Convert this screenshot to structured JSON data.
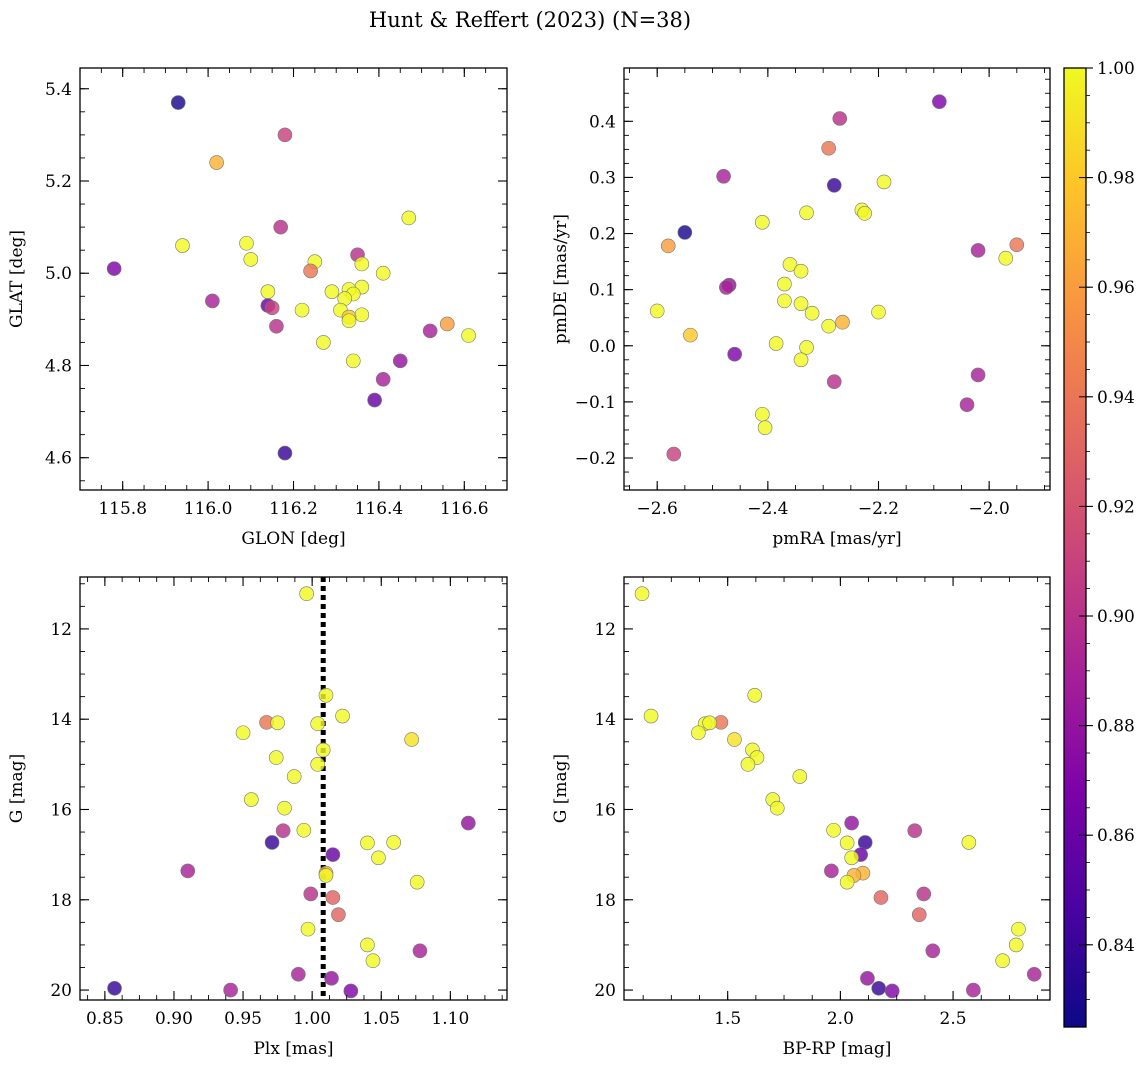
{
  "title": "Hunt & Reffert (2023) (N=38)",
  "colorbar": {
    "min": 0.825,
    "max": 1.0,
    "colormap": "plasma",
    "ticks": [
      0.84,
      0.86,
      0.88,
      0.9,
      0.92,
      0.94,
      0.96,
      0.98,
      1.0
    ],
    "tick_labels": [
      "0.84",
      "0.86",
      "0.88",
      "0.90",
      "0.92",
      "0.94",
      "0.96",
      "0.98",
      "1.00"
    ]
  },
  "chart_data": [
    {
      "type": "scatter",
      "id": "glon-glat",
      "xlabel": "GLON [deg]",
      "ylabel": "GLAT [deg]",
      "xlim": [
        115.7,
        116.7
      ],
      "ylim": [
        4.53,
        5.445
      ],
      "y_inverted": false,
      "xticks": [
        115.8,
        116.0,
        116.2,
        116.4,
        116.6
      ],
      "xtick_labels": [
        "115.8",
        "116.0",
        "116.2",
        "116.4",
        "116.6"
      ],
      "yticks": [
        4.6,
        4.8,
        5.0,
        5.2,
        5.4
      ],
      "ytick_labels": [
        "4.6",
        "4.8",
        "5.0",
        "5.2",
        "5.4"
      ],
      "points": [
        {
          "x": 115.93,
          "y": 5.37,
          "c": 0.83
        },
        {
          "x": 116.18,
          "y": 5.3,
          "c": 0.91
        },
        {
          "x": 116.02,
          "y": 5.24,
          "c": 0.97
        },
        {
          "x": 116.47,
          "y": 5.12,
          "c": 1.0
        },
        {
          "x": 116.17,
          "y": 5.1,
          "c": 0.9
        },
        {
          "x": 116.09,
          "y": 5.065,
          "c": 1.0
        },
        {
          "x": 115.94,
          "y": 5.06,
          "c": 1.0
        },
        {
          "x": 116.35,
          "y": 5.04,
          "c": 0.9
        },
        {
          "x": 116.1,
          "y": 5.03,
          "c": 1.0
        },
        {
          "x": 116.25,
          "y": 5.025,
          "c": 1.0
        },
        {
          "x": 116.36,
          "y": 5.02,
          "c": 1.0
        },
        {
          "x": 115.78,
          "y": 5.01,
          "c": 0.87
        },
        {
          "x": 116.24,
          "y": 5.005,
          "c": 0.94
        },
        {
          "x": 116.41,
          "y": 5.0,
          "c": 1.0
        },
        {
          "x": 116.36,
          "y": 4.97,
          "c": 1.0
        },
        {
          "x": 116.33,
          "y": 4.965,
          "c": 1.0
        },
        {
          "x": 116.14,
          "y": 4.96,
          "c": 1.0
        },
        {
          "x": 116.29,
          "y": 4.96,
          "c": 1.0
        },
        {
          "x": 116.34,
          "y": 4.955,
          "c": 1.0
        },
        {
          "x": 116.32,
          "y": 4.945,
          "c": 1.0
        },
        {
          "x": 116.01,
          "y": 4.94,
          "c": 0.89
        },
        {
          "x": 116.14,
          "y": 4.93,
          "c": 0.86
        },
        {
          "x": 116.15,
          "y": 4.925,
          "c": 0.91
        },
        {
          "x": 116.31,
          "y": 4.92,
          "c": 1.0
        },
        {
          "x": 116.22,
          "y": 4.92,
          "c": 1.0
        },
        {
          "x": 116.36,
          "y": 4.91,
          "c": 1.0
        },
        {
          "x": 116.33,
          "y": 4.905,
          "c": 0.98
        },
        {
          "x": 116.33,
          "y": 4.897,
          "c": 1.0
        },
        {
          "x": 116.56,
          "y": 4.89,
          "c": 0.96
        },
        {
          "x": 116.16,
          "y": 4.885,
          "c": 0.9
        },
        {
          "x": 116.52,
          "y": 4.875,
          "c": 0.89
        },
        {
          "x": 116.61,
          "y": 4.865,
          "c": 1.0
        },
        {
          "x": 116.27,
          "y": 4.85,
          "c": 1.0
        },
        {
          "x": 116.34,
          "y": 4.81,
          "c": 1.0
        },
        {
          "x": 116.45,
          "y": 4.81,
          "c": 0.88
        },
        {
          "x": 116.41,
          "y": 4.77,
          "c": 0.89
        },
        {
          "x": 116.39,
          "y": 4.725,
          "c": 0.86
        },
        {
          "x": 116.18,
          "y": 4.61,
          "c": 0.84
        }
      ]
    },
    {
      "type": "scatter",
      "id": "pmra-pmde",
      "xlabel": "pmRA [mas/yr]",
      "ylabel": "pmDE [mas/yr]",
      "xlim": [
        -2.66,
        -1.89
      ],
      "ylim": [
        -0.257,
        0.495
      ],
      "y_inverted": false,
      "xticks": [
        -2.6,
        -2.4,
        -2.2,
        -2.0
      ],
      "xtick_labels": [
        "−2.6",
        "−2.4",
        "−2.2",
        "−2.0"
      ],
      "yticks": [
        -0.2,
        -0.1,
        0.0,
        0.1,
        0.2,
        0.3,
        0.4
      ],
      "ytick_labels": [
        "−0.2",
        "−0.1",
        "0.0",
        "0.1",
        "0.2",
        "0.3",
        "0.4"
      ],
      "points": [
        {
          "x": -2.09,
          "y": 0.435,
          "c": 0.87
        },
        {
          "x": -2.27,
          "y": 0.405,
          "c": 0.9
        },
        {
          "x": -2.29,
          "y": 0.352,
          "c": 0.94
        },
        {
          "x": -2.48,
          "y": 0.302,
          "c": 0.89
        },
        {
          "x": -2.19,
          "y": 0.292,
          "c": 1.0
        },
        {
          "x": -2.28,
          "y": 0.286,
          "c": 0.84
        },
        {
          "x": -2.23,
          "y": 0.242,
          "c": 1.0
        },
        {
          "x": -2.33,
          "y": 0.237,
          "c": 1.0
        },
        {
          "x": -2.225,
          "y": 0.236,
          "c": 1.0
        },
        {
          "x": -2.41,
          "y": 0.22,
          "c": 1.0
        },
        {
          "x": -2.55,
          "y": 0.202,
          "c": 0.83
        },
        {
          "x": -1.95,
          "y": 0.18,
          "c": 0.94
        },
        {
          "x": -2.58,
          "y": 0.178,
          "c": 0.96
        },
        {
          "x": -2.02,
          "y": 0.17,
          "c": 0.89
        },
        {
          "x": -1.97,
          "y": 0.156,
          "c": 1.0
        },
        {
          "x": -2.36,
          "y": 0.145,
          "c": 1.0
        },
        {
          "x": -2.34,
          "y": 0.133,
          "c": 1.0
        },
        {
          "x": -2.37,
          "y": 0.11,
          "c": 1.0
        },
        {
          "x": -2.47,
          "y": 0.108,
          "c": 0.88
        },
        {
          "x": -2.475,
          "y": 0.104,
          "c": 0.89
        },
        {
          "x": -2.37,
          "y": 0.08,
          "c": 1.0
        },
        {
          "x": -2.34,
          "y": 0.075,
          "c": 1.0
        },
        {
          "x": -2.6,
          "y": 0.062,
          "c": 1.0
        },
        {
          "x": -2.2,
          "y": 0.06,
          "c": 1.0
        },
        {
          "x": -2.32,
          "y": 0.058,
          "c": 1.0
        },
        {
          "x": -2.265,
          "y": 0.042,
          "c": 0.97
        },
        {
          "x": -2.29,
          "y": 0.035,
          "c": 1.0
        },
        {
          "x": -2.54,
          "y": 0.019,
          "c": 0.98
        },
        {
          "x": -2.385,
          "y": 0.004,
          "c": 1.0
        },
        {
          "x": -2.33,
          "y": -0.003,
          "c": 1.0
        },
        {
          "x": -2.46,
          "y": -0.015,
          "c": 0.87
        },
        {
          "x": -2.34,
          "y": -0.025,
          "c": 1.0
        },
        {
          "x": -2.02,
          "y": -0.052,
          "c": 0.89
        },
        {
          "x": -2.28,
          "y": -0.064,
          "c": 0.9
        },
        {
          "x": -2.04,
          "y": -0.105,
          "c": 0.89
        },
        {
          "x": -2.41,
          "y": -0.122,
          "c": 1.0
        },
        {
          "x": -2.405,
          "y": -0.146,
          "c": 1.0
        },
        {
          "x": -2.57,
          "y": -0.193,
          "c": 0.91
        }
      ]
    },
    {
      "type": "scatter",
      "id": "plx-g",
      "xlabel": "Plx [mas]",
      "ylabel": "G [mag]",
      "xlim": [
        0.832,
        1.141
      ],
      "ylim": [
        20.22,
        10.85
      ],
      "y_inverted": true,
      "vline": {
        "x": 1.008,
        "style": "dotted",
        "color": "#000000"
      },
      "xticks": [
        0.85,
        0.9,
        0.95,
        1.0,
        1.05,
        1.1
      ],
      "xtick_labels": [
        "0.85",
        "0.90",
        "0.95",
        "1.00",
        "1.05",
        "1.10"
      ],
      "yticks": [
        12,
        14,
        16,
        18,
        20
      ],
      "ytick_labels": [
        "12",
        "14",
        "16",
        "18",
        "20"
      ],
      "points": [
        {
          "x": 0.996,
          "y": 11.22,
          "c": 1.0
        },
        {
          "x": 1.01,
          "y": 13.47,
          "c": 1.0
        },
        {
          "x": 1.022,
          "y": 13.93,
          "c": 1.0
        },
        {
          "x": 0.967,
          "y": 14.07,
          "c": 0.94
        },
        {
          "x": 0.975,
          "y": 14.08,
          "c": 1.0
        },
        {
          "x": 1.004,
          "y": 14.1,
          "c": 1.0
        },
        {
          "x": 0.95,
          "y": 14.3,
          "c": 1.0
        },
        {
          "x": 1.072,
          "y": 14.45,
          "c": 0.99
        },
        {
          "x": 1.008,
          "y": 14.68,
          "c": 1.0
        },
        {
          "x": 0.974,
          "y": 14.85,
          "c": 1.0
        },
        {
          "x": 1.004,
          "y": 15.0,
          "c": 1.0
        },
        {
          "x": 0.987,
          "y": 15.27,
          "c": 1.0
        },
        {
          "x": 0.956,
          "y": 15.78,
          "c": 1.0
        },
        {
          "x": 0.98,
          "y": 15.97,
          "c": 1.0
        },
        {
          "x": 1.113,
          "y": 16.3,
          "c": 0.88
        },
        {
          "x": 0.994,
          "y": 16.46,
          "c": 1.0
        },
        {
          "x": 0.979,
          "y": 16.47,
          "c": 0.9
        },
        {
          "x": 0.971,
          "y": 16.73,
          "c": 0.84
        },
        {
          "x": 1.04,
          "y": 16.74,
          "c": 1.0
        },
        {
          "x": 1.059,
          "y": 16.73,
          "c": 1.0
        },
        {
          "x": 1.015,
          "y": 17.0,
          "c": 0.86
        },
        {
          "x": 1.048,
          "y": 17.07,
          "c": 1.0
        },
        {
          "x": 0.91,
          "y": 17.36,
          "c": 0.89
        },
        {
          "x": 1.01,
          "y": 17.41,
          "c": 0.97
        },
        {
          "x": 1.01,
          "y": 17.46,
          "c": 1.0
        },
        {
          "x": 1.076,
          "y": 17.61,
          "c": 1.0
        },
        {
          "x": 0.999,
          "y": 17.87,
          "c": 0.9
        },
        {
          "x": 1.015,
          "y": 17.95,
          "c": 0.93
        },
        {
          "x": 1.019,
          "y": 18.33,
          "c": 0.93
        },
        {
          "x": 0.997,
          "y": 18.65,
          "c": 1.0
        },
        {
          "x": 1.04,
          "y": 19.0,
          "c": 1.0
        },
        {
          "x": 1.078,
          "y": 19.13,
          "c": 0.89
        },
        {
          "x": 1.044,
          "y": 19.35,
          "c": 1.0
        },
        {
          "x": 0.99,
          "y": 19.65,
          "c": 0.89
        },
        {
          "x": 1.014,
          "y": 19.74,
          "c": 0.88
        },
        {
          "x": 0.857,
          "y": 19.96,
          "c": 0.84
        },
        {
          "x": 0.941,
          "y": 20.0,
          "c": 0.89
        },
        {
          "x": 1.028,
          "y": 20.02,
          "c": 0.87
        }
      ]
    },
    {
      "type": "scatter",
      "id": "bprp-g",
      "xlabel": "BP-RP [mag]",
      "ylabel": "G [mag]",
      "xlim": [
        1.04,
        2.93
      ],
      "ylim": [
        20.22,
        10.85
      ],
      "y_inverted": true,
      "xticks": [
        1.5,
        2.0,
        2.5
      ],
      "xtick_labels": [
        "1.5",
        "2.0",
        "2.5"
      ],
      "yticks": [
        12,
        14,
        16,
        18,
        20
      ],
      "ytick_labels": [
        "12",
        "14",
        "16",
        "18",
        "20"
      ],
      "points": [
        {
          "x": 1.12,
          "y": 11.22,
          "c": 1.0
        },
        {
          "x": 1.62,
          "y": 13.47,
          "c": 1.0
        },
        {
          "x": 1.16,
          "y": 13.93,
          "c": 1.0
        },
        {
          "x": 1.47,
          "y": 14.07,
          "c": 0.94
        },
        {
          "x": 1.4,
          "y": 14.1,
          "c": 1.0
        },
        {
          "x": 1.42,
          "y": 14.08,
          "c": 1.0
        },
        {
          "x": 1.37,
          "y": 14.3,
          "c": 1.0
        },
        {
          "x": 1.53,
          "y": 14.45,
          "c": 0.99
        },
        {
          "x": 1.61,
          "y": 14.68,
          "c": 1.0
        },
        {
          "x": 1.63,
          "y": 14.85,
          "c": 1.0
        },
        {
          "x": 1.59,
          "y": 15.0,
          "c": 1.0
        },
        {
          "x": 1.82,
          "y": 15.27,
          "c": 1.0
        },
        {
          "x": 1.7,
          "y": 15.78,
          "c": 1.0
        },
        {
          "x": 1.72,
          "y": 15.97,
          "c": 1.0
        },
        {
          "x": 2.05,
          "y": 16.3,
          "c": 0.88
        },
        {
          "x": 1.97,
          "y": 16.46,
          "c": 1.0
        },
        {
          "x": 2.33,
          "y": 16.47,
          "c": 0.9
        },
        {
          "x": 2.11,
          "y": 16.73,
          "c": 0.84
        },
        {
          "x": 2.03,
          "y": 16.74,
          "c": 1.0
        },
        {
          "x": 2.57,
          "y": 16.73,
          "c": 1.0
        },
        {
          "x": 2.09,
          "y": 17.0,
          "c": 0.86
        },
        {
          "x": 2.05,
          "y": 17.07,
          "c": 1.0
        },
        {
          "x": 1.96,
          "y": 17.36,
          "c": 0.89
        },
        {
          "x": 2.1,
          "y": 17.41,
          "c": 0.97
        },
        {
          "x": 2.06,
          "y": 17.46,
          "c": 0.97
        },
        {
          "x": 2.03,
          "y": 17.61,
          "c": 1.0
        },
        {
          "x": 2.37,
          "y": 17.87,
          "c": 0.9
        },
        {
          "x": 2.18,
          "y": 17.95,
          "c": 0.93
        },
        {
          "x": 2.35,
          "y": 18.33,
          "c": 0.93
        },
        {
          "x": 2.79,
          "y": 18.65,
          "c": 1.0
        },
        {
          "x": 2.78,
          "y": 19.0,
          "c": 1.0
        },
        {
          "x": 2.41,
          "y": 19.13,
          "c": 0.89
        },
        {
          "x": 2.72,
          "y": 19.35,
          "c": 1.0
        },
        {
          "x": 2.86,
          "y": 19.65,
          "c": 0.89
        },
        {
          "x": 2.12,
          "y": 19.74,
          "c": 0.88
        },
        {
          "x": 2.17,
          "y": 19.96,
          "c": 0.84
        },
        {
          "x": 2.59,
          "y": 20.0,
          "c": 0.89
        },
        {
          "x": 2.23,
          "y": 20.02,
          "c": 0.87
        }
      ]
    }
  ]
}
